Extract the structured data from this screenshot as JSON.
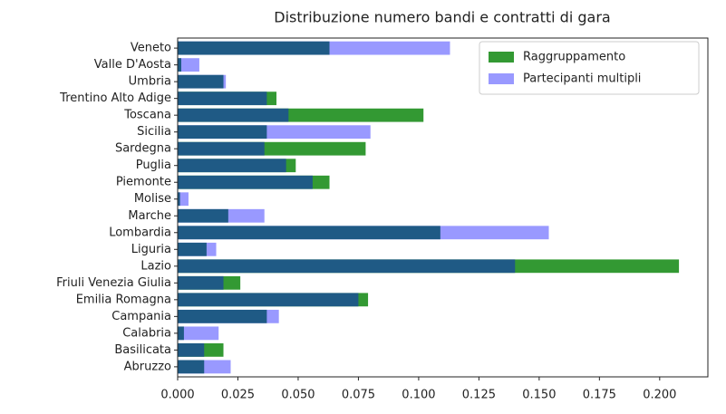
{
  "chart_data": {
    "type": "barh",
    "title": "Distribuzione numero bandi e contratti di gara",
    "categories": [
      "Abruzzo",
      "Basilicata",
      "Calabria",
      "Campania",
      "Emilia Romagna",
      "Friuli Venezia Giulia",
      "Lazio",
      "Liguria",
      "Lombardia",
      "Marche",
      "Molise",
      "Piemonte",
      "Puglia",
      "Sardegna",
      "Sicilia",
      "Toscana",
      "Trentino Alto Adige",
      "Umbria",
      "Valle D'Aosta",
      "Veneto"
    ],
    "series": [
      {
        "name": "Raggruppamento",
        "color": "#339933",
        "values": [
          null,
          0.019,
          null,
          null,
          0.079,
          0.026,
          0.208,
          null,
          null,
          null,
          null,
          0.063,
          0.049,
          0.078,
          null,
          0.102,
          0.041,
          null,
          null,
          null
        ]
      },
      {
        "name": "Partecipanti multipli",
        "color": "#9999ff",
        "values": [
          0.022,
          null,
          0.017,
          0.042,
          null,
          null,
          null,
          0.016,
          0.154,
          0.036,
          0.0045,
          null,
          null,
          null,
          0.08,
          null,
          null,
          0.02,
          0.009,
          0.113
        ]
      },
      {
        "color": "#1f5a85",
        "values": [
          0.011,
          0.011,
          0.0026,
          0.037,
          0.075,
          0.019,
          0.14,
          0.012,
          0.109,
          0.021,
          0.001,
          0.056,
          0.045,
          0.036,
          0.037,
          0.046,
          0.037,
          0.019,
          0.0015,
          0.063
        ]
      }
    ],
    "xlim": [
      0,
      0.22
    ],
    "xticks": [
      {
        "value": 0,
        "label": "0.000"
      },
      {
        "value": 0.025,
        "label": "0.025"
      },
      {
        "value": 0.05,
        "label": "0.050"
      },
      {
        "value": 0.075,
        "label": "0.075"
      },
      {
        "value": 0.1,
        "label": "0.100"
      },
      {
        "value": 0.125,
        "label": "0.125"
      },
      {
        "value": 0.15,
        "label": "0.150"
      },
      {
        "value": 0.175,
        "label": "0.175"
      },
      {
        "value": 0.2,
        "label": "0.200"
      }
    ],
    "legend": "upper right"
  }
}
